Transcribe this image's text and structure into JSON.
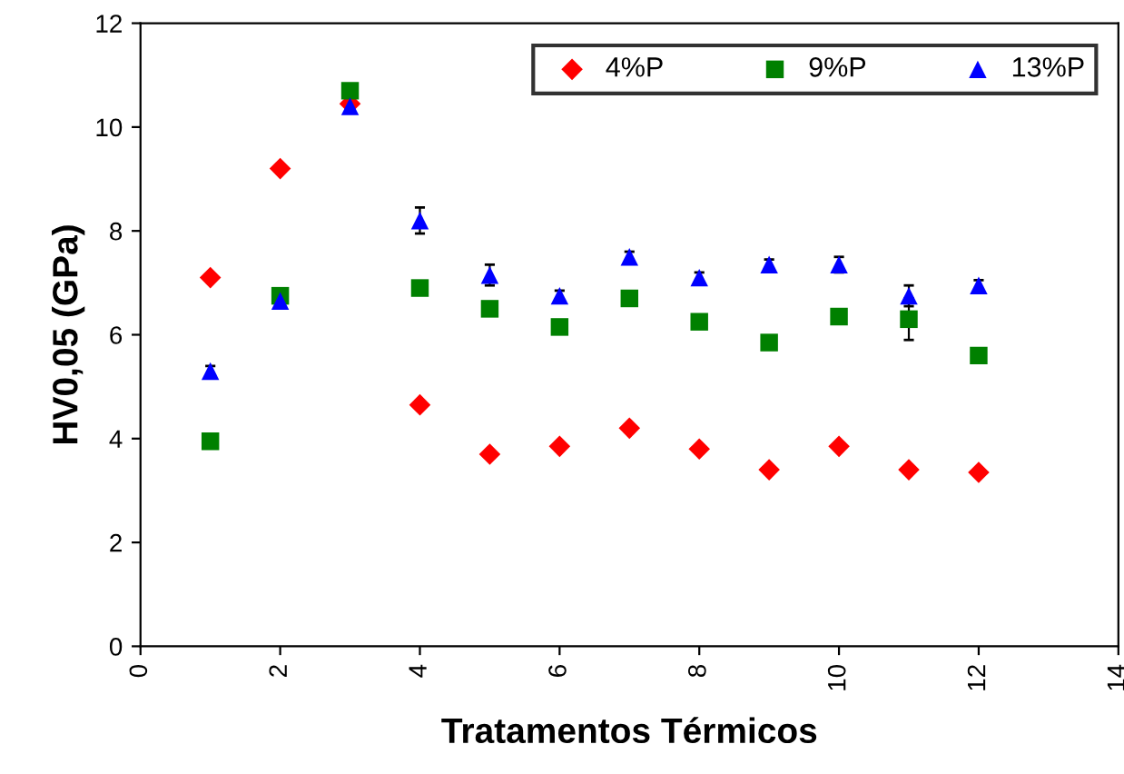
{
  "chart_data": {
    "type": "scatter",
    "xlabel": "Tratamentos Térmicos",
    "ylabel": "HV0,05 (GPa)",
    "x": [
      1,
      2,
      3,
      4,
      5,
      6,
      7,
      8,
      9,
      10,
      11,
      12
    ],
    "xlim": [
      0,
      14
    ],
    "xticks": [
      0,
      2,
      4,
      6,
      8,
      10,
      12,
      14
    ],
    "ylim": [
      0,
      12
    ],
    "yticks": [
      0,
      2,
      4,
      6,
      8,
      10,
      12
    ],
    "grid": false,
    "legend": "top right",
    "series": [
      {
        "name": "4%P",
        "color": "#ff0000",
        "marker": "diamond",
        "values": [
          7.1,
          9.2,
          10.45,
          4.65,
          3.7,
          3.85,
          4.2,
          3.8,
          3.4,
          3.85,
          3.4,
          3.35
        ]
      },
      {
        "name": "9%P",
        "color": "#008000",
        "marker": "square",
        "values": [
          3.95,
          6.75,
          10.7,
          6.9,
          6.5,
          6.15,
          6.7,
          6.25,
          5.85,
          6.35,
          6.3,
          5.6
        ],
        "errors": [
          null,
          null,
          null,
          null,
          null,
          null,
          null,
          null,
          null,
          null,
          0.4,
          null
        ]
      },
      {
        "name": "13%P",
        "color": "#0000ff",
        "marker": "triangle",
        "values": [
          5.3,
          6.65,
          10.4,
          8.2,
          7.15,
          6.75,
          7.5,
          7.1,
          7.35,
          7.35,
          6.75,
          6.95
        ],
        "errors": [
          0.1,
          null,
          null,
          0.25,
          0.2,
          0.1,
          0.1,
          0.1,
          0.1,
          0.15,
          0.2,
          0.1
        ]
      }
    ]
  }
}
